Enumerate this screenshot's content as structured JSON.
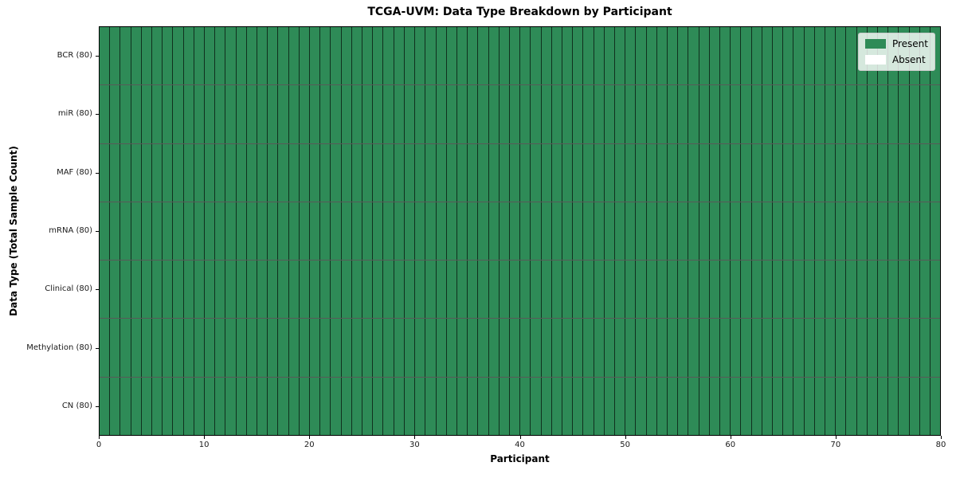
{
  "chart_data": {
    "type": "heatmap",
    "title": "TCGA-UVM: Data Type Breakdown by Participant",
    "xlabel": "Participant",
    "ylabel": "Data Type (Total Sample Count)",
    "xlim": [
      0,
      80
    ],
    "x_ticks": [
      "0",
      "10",
      "20",
      "30",
      "40",
      "50",
      "60",
      "70",
      "80"
    ],
    "x_tick_values": [
      0,
      10,
      20,
      30,
      40,
      50,
      60,
      70,
      80
    ],
    "n_participants": 80,
    "rows": [
      {
        "label": "BCR (80)",
        "present_count": 80
      },
      {
        "label": "miR (80)",
        "present_count": 80
      },
      {
        "label": "MAF (80)",
        "present_count": 80
      },
      {
        "label": "mRNA (80)",
        "present_count": 80
      },
      {
        "label": "Clinical (80)",
        "present_count": 80
      },
      {
        "label": "Methylation (80)",
        "present_count": 80
      },
      {
        "label": "CN (80)",
        "present_count": 80
      }
    ],
    "legend": [
      {
        "label": "Present",
        "color": "#2e8b57"
      },
      {
        "label": "Absent",
        "color": "#ffffff"
      }
    ],
    "legend_position": "upper right",
    "grid": false,
    "colors": {
      "present": "#2e8b57",
      "absent": "#ffffff",
      "cell_border": "rgba(0,0,0,0.65)",
      "axis": "#000000"
    }
  }
}
